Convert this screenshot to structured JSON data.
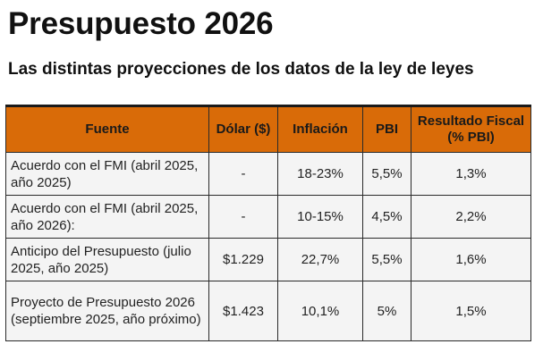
{
  "title": "Presupuesto 2026",
  "subtitle": "Las distintas proyecciones de los datos de la ley de leyes",
  "table": {
    "headers": {
      "fuente": "Fuente",
      "dolar": "Dólar ($)",
      "inflacion": "Inflación",
      "pbi": "PBI",
      "resultado": "Resultado Fiscal (% PBI)"
    },
    "rows": [
      {
        "fuente": "Acuerdo con el FMI (abril 2025, año 2025)",
        "dolar": "-",
        "inflacion": "18-23%",
        "pbi": "5,5%",
        "resultado": "1,3%"
      },
      {
        "fuente": "Acuerdo con el FMI (abril 2025, año 2026):",
        "dolar": "-",
        "inflacion": "10-15%",
        "pbi": "4,5%",
        "resultado": "2,2%"
      },
      {
        "fuente": "Anticipo del Presupuesto (julio 2025, año 2025)",
        "dolar": "$1.229",
        "inflacion": "22,7%",
        "pbi": "5,5%",
        "resultado": "1,6%"
      },
      {
        "fuente": "Proyecto de Presupuesto 2026 (septiembre 2025, año próximo)",
        "dolar": "$1.423",
        "inflacion": "10,1%",
        "pbi": "5%",
        "resultado": "1,5%"
      }
    ]
  },
  "colors": {
    "header_background": "#d96b08",
    "row_background": "#f4f4f4",
    "border": "#2a2a2a"
  }
}
